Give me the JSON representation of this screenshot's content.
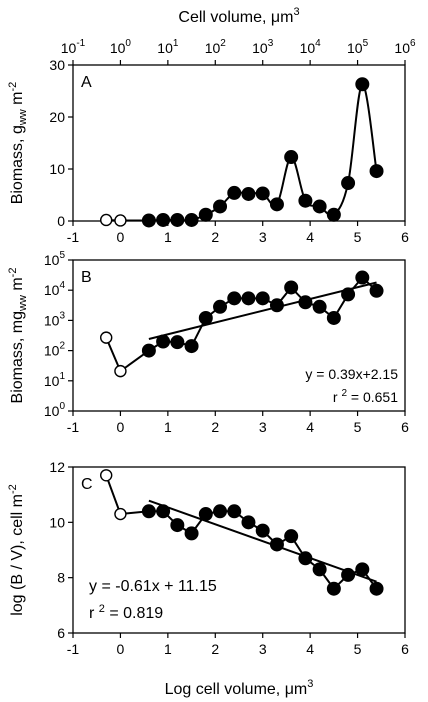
{
  "chart_data": [
    {
      "type": "line",
      "panel": "A",
      "ylabel": "Biomass, g_ww m^-2",
      "top_axis": {
        "label": "Cell volume, μm3",
        "tick_labels": [
          {
            "base": "10",
            "exp": "-1"
          },
          {
            "base": "10",
            "exp": "0"
          },
          {
            "base": "10",
            "exp": "1"
          },
          {
            "base": "10",
            "exp": "2"
          },
          {
            "base": "10",
            "exp": "3"
          },
          {
            "base": "10",
            "exp": "4"
          },
          {
            "base": "10",
            "exp": "5"
          },
          {
            "base": "10",
            "exp": "6"
          }
        ]
      },
      "xlim": [
        -1,
        6
      ],
      "ylim": [
        0,
        30
      ],
      "xticks": [
        "-1",
        "0",
        "1",
        "2",
        "3",
        "4",
        "5",
        "6"
      ],
      "yticks": [
        "0",
        "10",
        "20",
        "30"
      ],
      "open_points": [
        {
          "x": -0.3,
          "y": 0.2
        },
        {
          "x": 0.0,
          "y": 0.1
        }
      ],
      "series": [
        {
          "x": [
            0.6,
            0.9,
            1.2,
            1.5,
            1.8,
            2.1,
            2.4,
            2.7,
            3.0,
            3.3,
            3.6,
            3.9,
            4.2,
            4.5,
            4.8,
            5.1,
            5.4
          ],
          "y": [
            0.1,
            0.2,
            0.2,
            0.2,
            1.2,
            2.8,
            5.4,
            5.2,
            5.3,
            3.2,
            12.3,
            3.9,
            2.8,
            1.2,
            7.3,
            26.3,
            9.6
          ]
        }
      ]
    },
    {
      "type": "line",
      "panel": "B",
      "ylabel": "Biomass, mg_ww m^-2",
      "xlim": [
        -1,
        6
      ],
      "ylim": [
        0,
        5
      ],
      "y_scale": "log10",
      "xticks": [
        "-1",
        "0",
        "1",
        "2",
        "3",
        "4",
        "5",
        "6"
      ],
      "yticks": [
        {
          "base": "10",
          "exp": "0"
        },
        {
          "base": "10",
          "exp": "1"
        },
        {
          "base": "10",
          "exp": "2"
        },
        {
          "base": "10",
          "exp": "3"
        },
        {
          "base": "10",
          "exp": "4"
        },
        {
          "base": "10",
          "exp": "5"
        }
      ],
      "open_points": [
        {
          "x": -0.3,
          "y": 2.43
        },
        {
          "x": 0.0,
          "y": 1.32
        }
      ],
      "series": [
        {
          "x": [
            0.6,
            0.9,
            1.2,
            1.5,
            1.8,
            2.1,
            2.4,
            2.7,
            3.0,
            3.3,
            3.6,
            3.9,
            4.2,
            4.5,
            4.8,
            5.1,
            5.4
          ],
          "y": [
            2.0,
            2.3,
            2.28,
            2.15,
            3.08,
            3.45,
            3.73,
            3.73,
            3.73,
            3.5,
            4.09,
            3.6,
            3.45,
            3.08,
            3.86,
            4.42,
            3.98
          ]
        }
      ],
      "fit": {
        "slope": 0.39,
        "intercept": 2.15,
        "x_range": [
          0.6,
          5.4
        ]
      },
      "equation": "y = 0.39x+2.15",
      "r2": {
        "prefix": "r",
        "exp": "2",
        "value": " = 0.651"
      }
    },
    {
      "type": "line",
      "panel": "C",
      "xlabel": "Log cell volume, μm3",
      "ylabel": "log (B / V), cell m^-2",
      "xlim": [
        -1,
        6
      ],
      "ylim": [
        6,
        12
      ],
      "xticks": [
        "-1",
        "0",
        "1",
        "2",
        "3",
        "4",
        "5",
        "6"
      ],
      "yticks": [
        "6",
        "8",
        "10",
        "12"
      ],
      "open_points": [
        {
          "x": -0.3,
          "y": 11.7
        },
        {
          "x": 0.0,
          "y": 10.3
        }
      ],
      "series": [
        {
          "x": [
            0.6,
            0.9,
            1.2,
            1.5,
            1.8,
            2.1,
            2.4,
            2.7,
            3.0,
            3.3,
            3.6,
            3.9,
            4.2,
            4.5,
            4.8,
            5.1,
            5.4
          ],
          "y": [
            10.4,
            10.4,
            9.9,
            9.6,
            10.3,
            10.4,
            10.4,
            10.0,
            9.7,
            9.2,
            9.5,
            8.7,
            8.3,
            7.6,
            8.1,
            8.3,
            7.6
          ]
        }
      ],
      "fit": {
        "slope": -0.61,
        "intercept": 11.15,
        "x_range": [
          0.6,
          5.4
        ]
      },
      "equation": "y = -0.61x + 11.15",
      "r2": {
        "prefix": "r",
        "exp": "2",
        "value": " = 0.819"
      }
    }
  ]
}
